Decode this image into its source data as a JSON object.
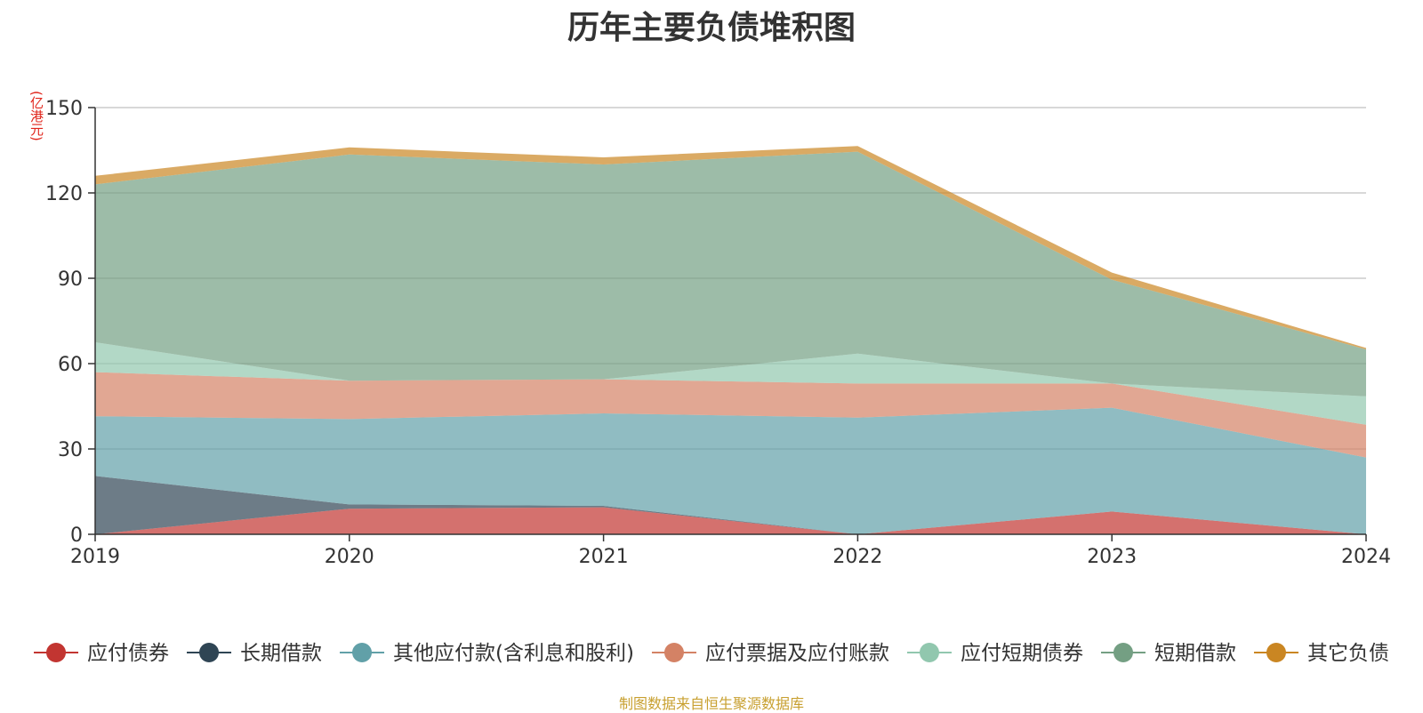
{
  "chart_data": {
    "type": "area",
    "stacked": true,
    "title": "历年主要负债堆积图",
    "ylabel": "(亿港元)",
    "xlabel": "",
    "categories": [
      "2019",
      "2020",
      "2021",
      "2022",
      "2023",
      "2024"
    ],
    "ylim": [
      0,
      150
    ],
    "yticks": [
      0,
      30,
      60,
      90,
      120,
      150
    ],
    "grid": true,
    "legend_position": "bottom",
    "series": [
      {
        "name": "应付债券",
        "values": [
          0,
          9,
          9.5,
          0,
          8,
          0
        ],
        "color": "#c23531"
      },
      {
        "name": "长期借款",
        "values": [
          20.5,
          1.5,
          0.5,
          0,
          0,
          0
        ],
        "color": "#2f4554"
      },
      {
        "name": "其他应付款(含利息和股利)",
        "values": [
          21,
          30,
          32.5,
          41,
          36.5,
          27
        ],
        "color": "#61a0a8"
      },
      {
        "name": "应付票据及应付账款",
        "values": [
          15.5,
          13.5,
          12,
          12,
          8.5,
          11.5
        ],
        "color": "#d48265"
      },
      {
        "name": "应付短期债券",
        "values": [
          10.5,
          0,
          0,
          10.5,
          0,
          10
        ],
        "color": "#91c7ae"
      },
      {
        "name": "短期借款",
        "values": [
          55.5,
          79.5,
          75.5,
          71,
          36.5,
          16.5
        ],
        "color": "#749f83"
      },
      {
        "name": "其它负债",
        "values": [
          3,
          2.5,
          2.5,
          2,
          2.5,
          0.5
        ],
        "color": "#ca8622"
      }
    ]
  },
  "source_text": "制图数据来自恒生聚源数据库",
  "colors": {
    "title": "#333333",
    "unit": "#e0251b",
    "source": "#c8a030",
    "grid": "#cccccc",
    "axis": "#333333"
  }
}
